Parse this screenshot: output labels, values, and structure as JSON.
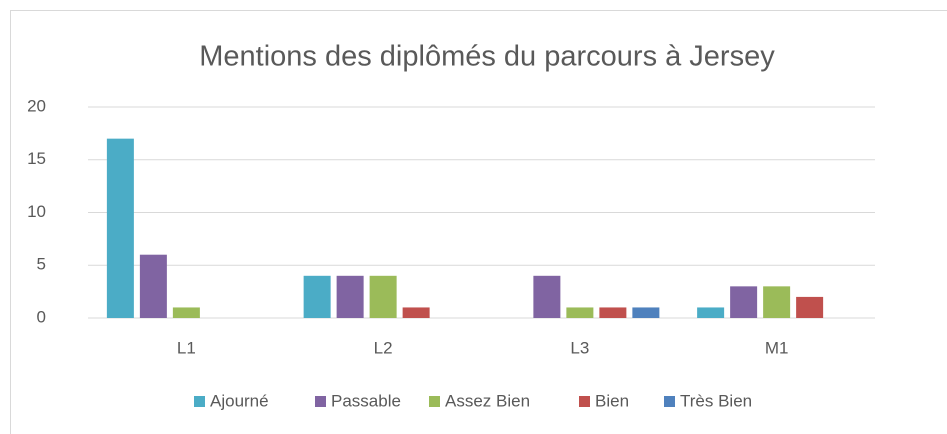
{
  "chart_data": {
    "type": "bar",
    "title": "Mentions des diplômés du parcours à Jersey",
    "categories": [
      "L1",
      "L2",
      "L3",
      "M1"
    ],
    "series": [
      {
        "name": "Ajourné",
        "color": "#4bacc6",
        "values": [
          17,
          4,
          0,
          1
        ]
      },
      {
        "name": "Passable",
        "color": "#8064a2",
        "values": [
          6,
          4,
          4,
          3
        ]
      },
      {
        "name": "Assez Bien",
        "color": "#9bbb59",
        "values": [
          1,
          4,
          1,
          3
        ]
      },
      {
        "name": "Bien",
        "color": "#c0504d",
        "values": [
          0,
          1,
          1,
          2
        ]
      },
      {
        "name": "Très Bien",
        "color": "#4f81bd",
        "values": [
          0,
          0,
          1,
          0
        ]
      }
    ],
    "ylim": [
      0,
      20
    ],
    "yticks": [
      0,
      5,
      10,
      15,
      20
    ],
    "grid": true,
    "legend": "bottom"
  }
}
